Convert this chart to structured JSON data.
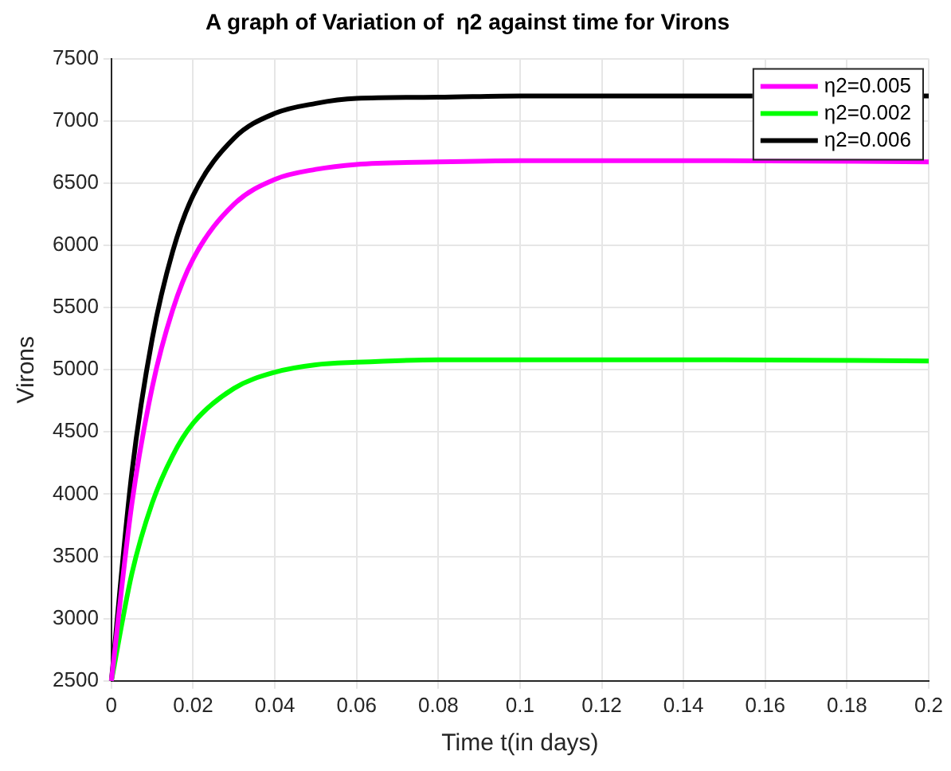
{
  "chart_data": {
    "type": "line",
    "title": "A graph of Variation of  η2 against time for Virons",
    "xlabel": "Time t(in days)",
    "ylabel": "Virons",
    "x": [
      0,
      0.005,
      0.01,
      0.015,
      0.02,
      0.03,
      0.04,
      0.05,
      0.06,
      0.08,
      0.1,
      0.15,
      0.2
    ],
    "series": [
      {
        "name": "η2=0.005",
        "color": "#ff00ff",
        "values": [
          2500,
          3920,
          4860,
          5480,
          5890,
          6330,
          6530,
          6610,
          6650,
          6670,
          6680,
          6680,
          6670
        ]
      },
      {
        "name": "η2=0.002",
        "color": "#00ff00",
        "values": [
          2500,
          3360,
          3930,
          4310,
          4570,
          4850,
          4980,
          5040,
          5060,
          5080,
          5080,
          5080,
          5070
        ]
      },
      {
        "name": "η2=0.006",
        "color": "#000000",
        "values": [
          2500,
          4170,
          5250,
          5950,
          6400,
          6860,
          7060,
          7140,
          7180,
          7190,
          7200,
          7200,
          7200
        ]
      }
    ],
    "xlim": [
      0,
      0.2
    ],
    "xticks": [
      0,
      0.02,
      0.04,
      0.06,
      0.08,
      0.1,
      0.12,
      0.14,
      0.16,
      0.18,
      0.2
    ],
    "ylim": [
      2500,
      7500
    ],
    "yticks": [
      2500,
      3000,
      3500,
      4000,
      4500,
      5000,
      5500,
      6000,
      6500,
      7000,
      7500
    ],
    "grid": true,
    "legend": "top right",
    "marker": "none",
    "line_style": "solid"
  }
}
